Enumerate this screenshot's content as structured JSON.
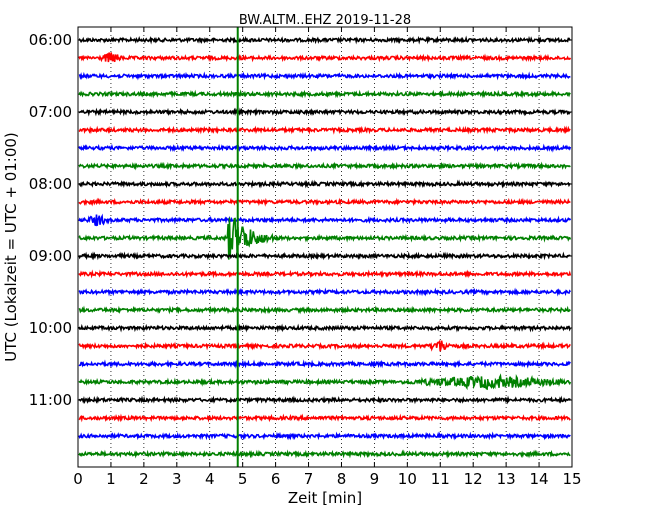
{
  "chart_data": {
    "type": "line",
    "title": "BW.ALTM..EHZ 2019-11-28",
    "xlabel": "Zeit  [min]",
    "ylabel": "UTC (Lokalzeit = UTC + 01:00)",
    "xlim": [
      0,
      15
    ],
    "x_ticks": [
      "0",
      "1",
      "2",
      "3",
      "4",
      "5",
      "6",
      "7",
      "8",
      "9",
      "10",
      "11",
      "12",
      "13",
      "14",
      "15"
    ],
    "y_tick_labels": [
      "06:00",
      "07:00",
      "08:00",
      "09:00",
      "10:00",
      "11:00"
    ],
    "trace_start_times": [
      "06:00",
      "06:15",
      "06:30",
      "06:45",
      "07:00",
      "07:15",
      "07:30",
      "07:45",
      "08:00",
      "08:15",
      "08:30",
      "08:45",
      "09:00",
      "09:15",
      "09:30",
      "09:45",
      "10:00",
      "10:15",
      "10:30",
      "10:45",
      "11:00",
      "11:15",
      "11:30",
      "11:45"
    ],
    "trace_colors": [
      "#000000",
      "#ff0000",
      "#0000ff",
      "#008000"
    ],
    "grid": "vertical dotted at each minute",
    "marker": {
      "x": 4.85,
      "color": "#008000",
      "style": "vertical line"
    },
    "events": [
      {
        "trace_start": "06:15",
        "minute": 1.0,
        "amplitude": 1.2
      },
      {
        "trace_start": "08:30",
        "minute": 0.6,
        "amplitude": 1.2
      },
      {
        "trace_start": "08:45",
        "minute": 4.8,
        "amplitude": 5.0
      },
      {
        "trace_start": "10:15",
        "minute": 11.0,
        "amplitude": 1.3
      },
      {
        "trace_start": "10:45",
        "minute": 12.5,
        "amplitude": 2.5
      }
    ]
  }
}
